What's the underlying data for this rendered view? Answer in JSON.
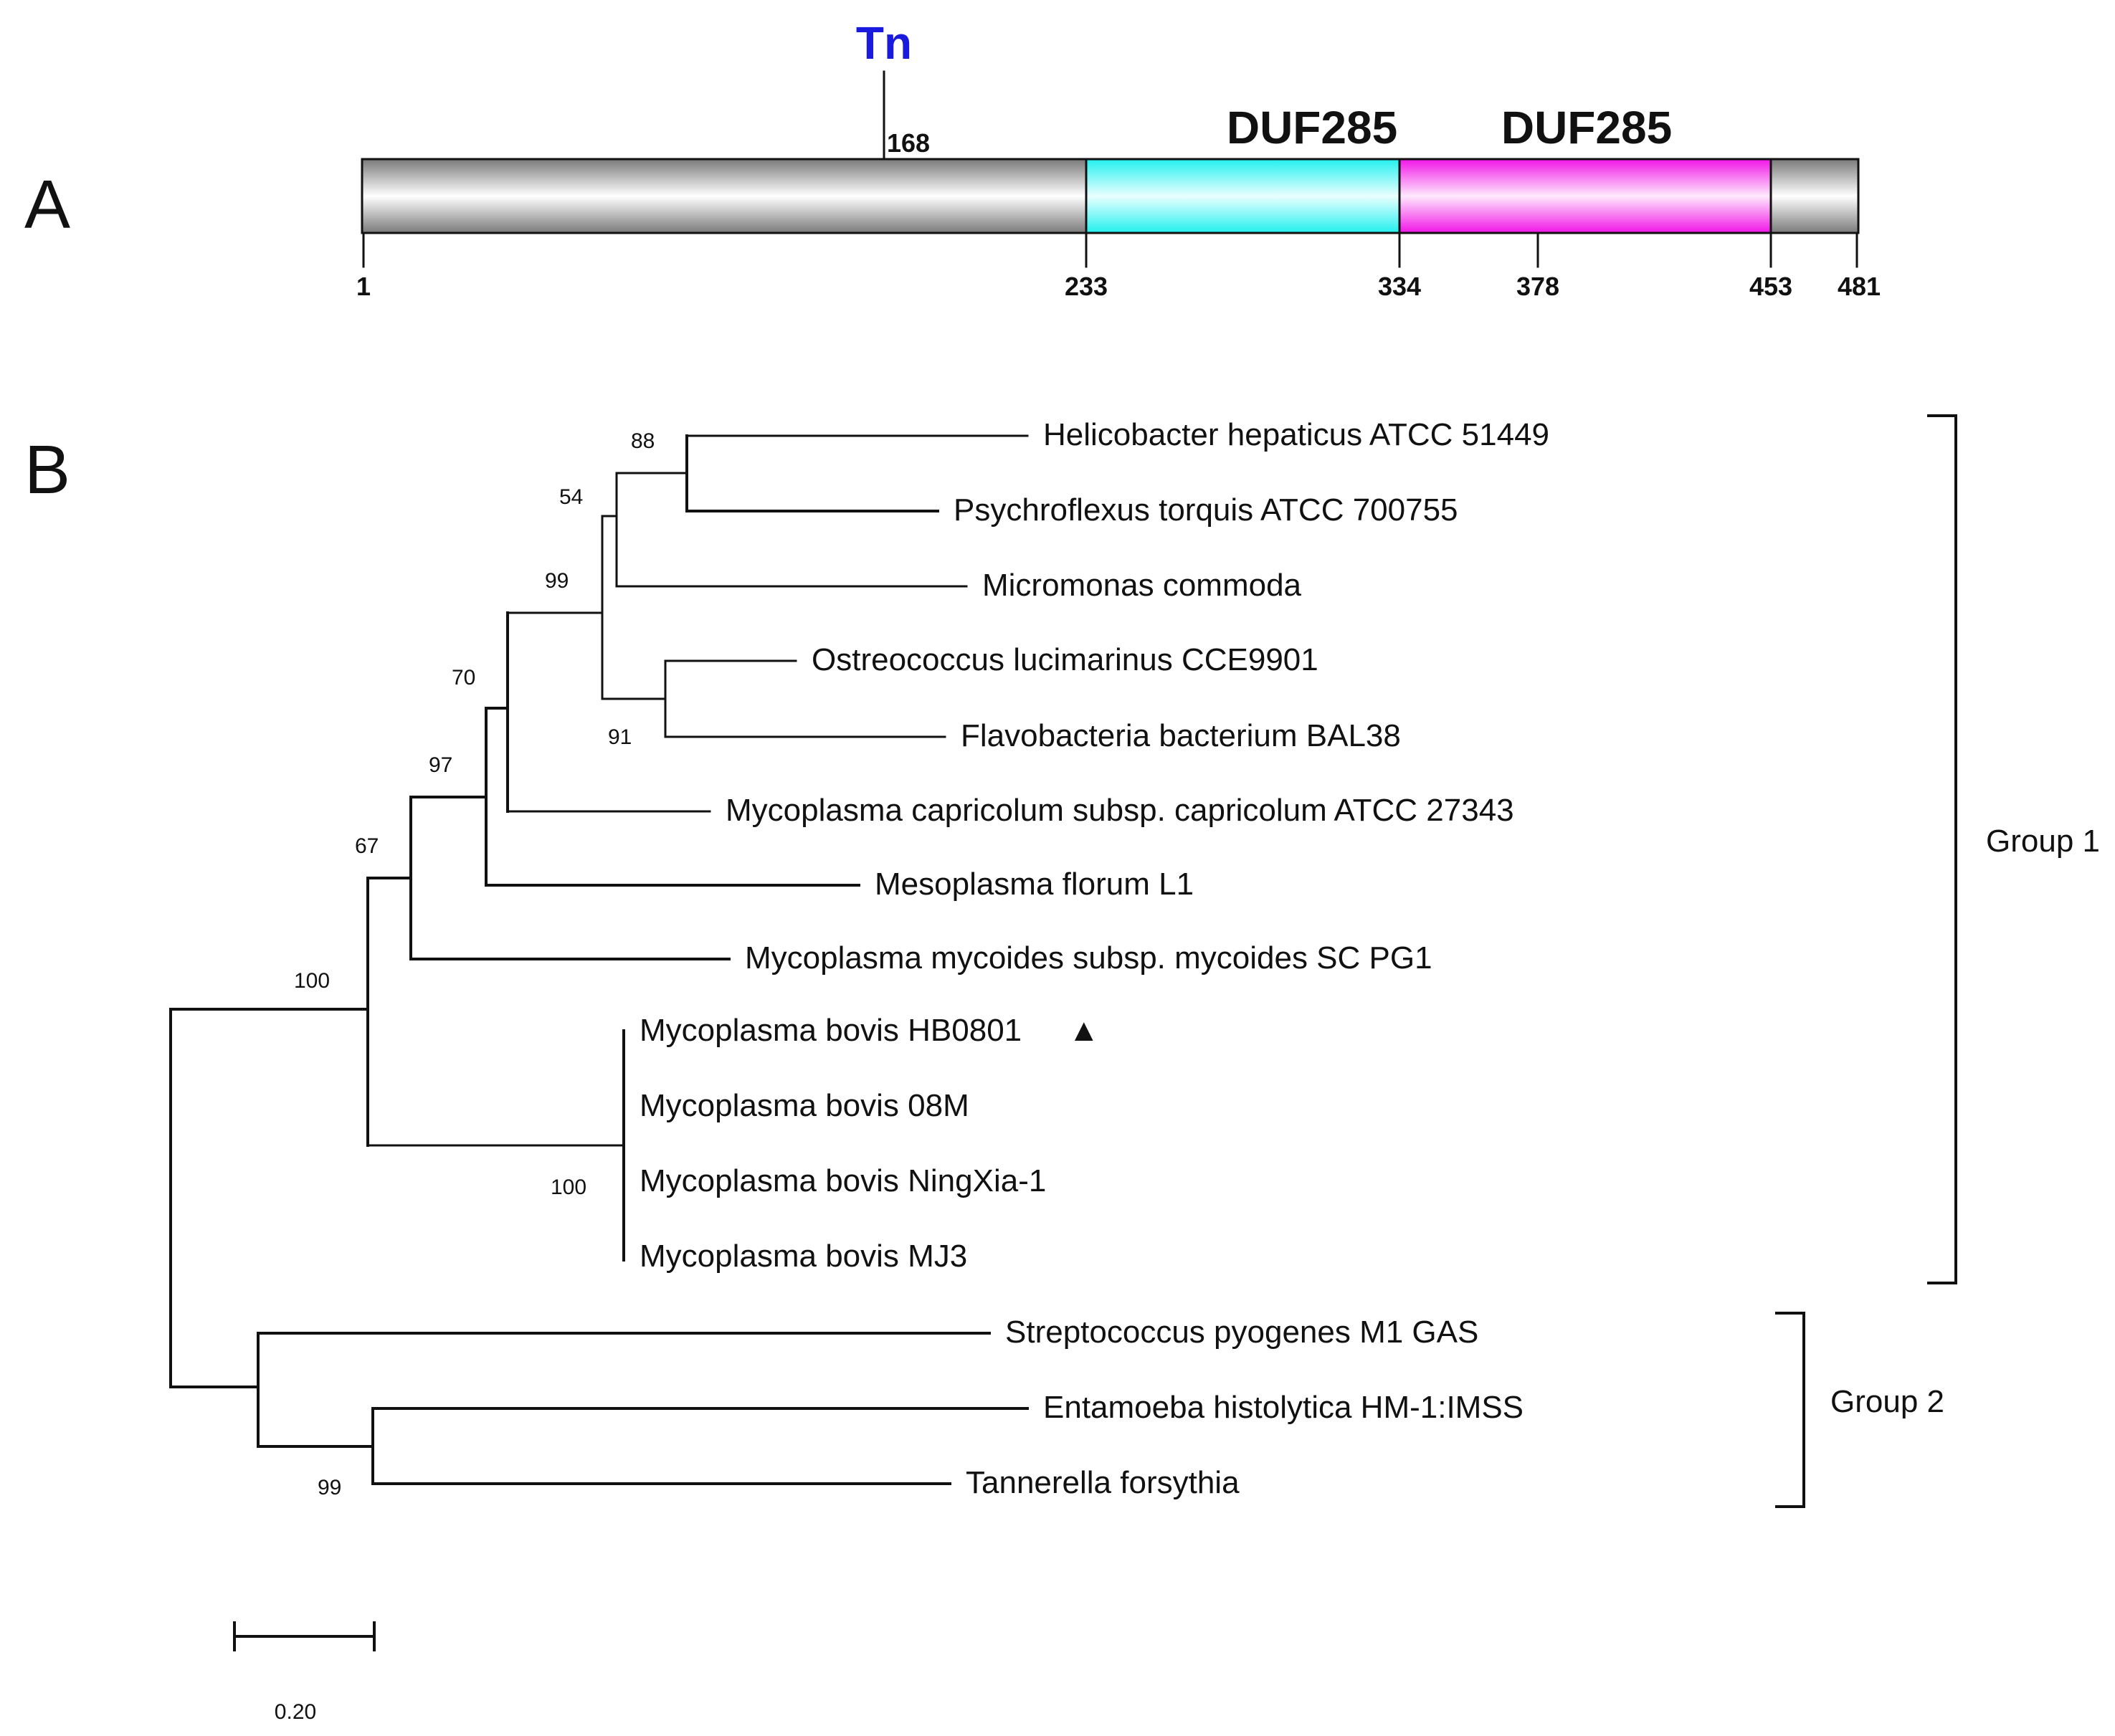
{
  "colors": {
    "tn": "#1a1adf",
    "duf1": "#22f0ee",
    "duf2": "#f015e6",
    "protein_bar": "#a8a8a8",
    "ink": "#111111"
  },
  "panel_a": {
    "letter": "A",
    "insertion_label": "Tn",
    "insertion_position": "168",
    "domain_labels": [
      "DUF285",
      "DUF285"
    ],
    "ticks": [
      "1",
      "233",
      "334",
      "378",
      "453",
      "481"
    ]
  },
  "panel_b": {
    "letter": "B",
    "leaves": [
      "Helicobacter hepaticus ATCC 51449",
      "Psychroflexus torquis ATCC 700755",
      "Micromonas commoda",
      "Ostreococcus lucimarinus CCE9901",
      "Flavobacteria bacterium BAL38",
      "Mycoplasma capricolum subsp. capricolum ATCC 27343",
      "Mesoplasma florum L1",
      "Mycoplasma mycoides subsp. mycoides SC PG1",
      "Mycoplasma bovis HB0801",
      "Mycoplasma bovis 08M",
      "Mycoplasma bovis NingXia-1",
      "Mycoplasma bovis MJ3",
      "Streptococcus pyogenes M1 GAS",
      "Entamoeba histolytica HM-1:IMSS",
      "Tannerella forsythia"
    ],
    "highlight_marker": "▲",
    "bootstrap": [
      "88",
      "54",
      "99",
      "91",
      "70",
      "97",
      "67",
      "100",
      "100",
      "99"
    ],
    "groups": [
      "Group 1",
      "Group 2"
    ],
    "scale_label": "0.20"
  }
}
